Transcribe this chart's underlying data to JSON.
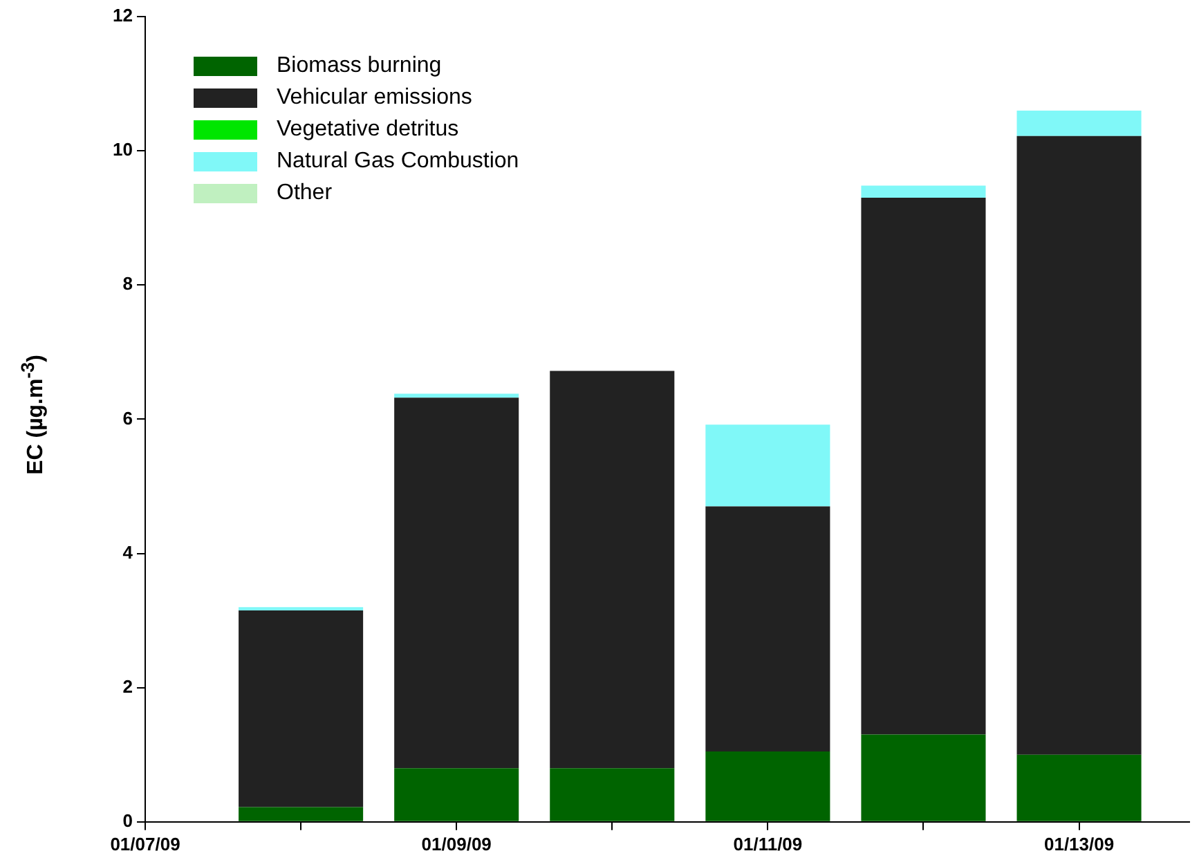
{
  "chart_data": {
    "type": "bar",
    "stacked": true,
    "ylabel": "EC (µg.m$^{-3}$)",
    "x": [
      "--01-08",
      "--01-09",
      "--01-10",
      "--01-11",
      "--01-12",
      "--01-13"
    ],
    "xlim": [
      "--01-07",
      "--01-13T17:00"
    ],
    "xticks": [
      {
        "value": "--01-07",
        "label": "01/07/09"
      },
      {
        "value": "--01-08",
        "label": null
      },
      {
        "value": "--01-09",
        "label": "01/09/09"
      },
      {
        "value": "--01-10",
        "label": null
      },
      {
        "value": "--01-11",
        "label": "01/11/09"
      },
      {
        "value": "--01-12",
        "label": null
      },
      {
        "value": "--01-13",
        "label": "01/13/09"
      }
    ],
    "ylim": [
      0,
      12
    ],
    "yticks": [
      0,
      2,
      4,
      6,
      8,
      10,
      12
    ],
    "grid": false,
    "legend": "top left",
    "series": [
      {
        "name": "Biomass burning",
        "color": "#006400",
        "values": [
          0.22,
          0.8,
          0.8,
          1.05,
          1.3,
          1.0
        ]
      },
      {
        "name": "Vehicular emissions",
        "color": "#222222",
        "values": [
          2.93,
          5.52,
          5.92,
          3.65,
          8.0,
          9.22
        ]
      },
      {
        "name": "Vegetative detritus",
        "color": "#00e600",
        "values": [
          0,
          0,
          0,
          0,
          0,
          0
        ]
      },
      {
        "name": "Natural Gas Combustion",
        "color": "#80f8f8",
        "values": [
          0.05,
          0.06,
          0,
          1.22,
          0.18,
          0.38
        ]
      },
      {
        "name": "Other",
        "color": "#c0f0c0",
        "values": [
          0,
          0,
          0,
          0,
          0,
          0
        ]
      }
    ]
  }
}
